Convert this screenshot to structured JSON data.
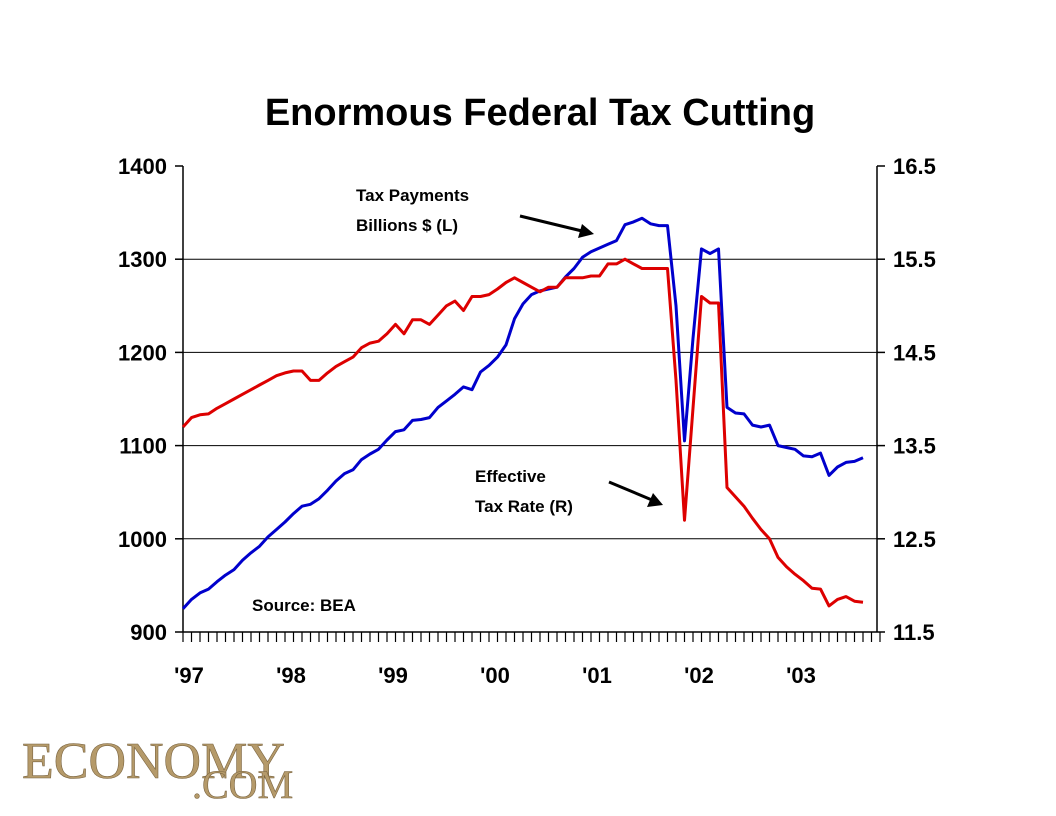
{
  "chart_data": {
    "type": "line",
    "title": "Enormous Federal Tax Cutting",
    "x_tick_labels": [
      "'97",
      "'98",
      "'99",
      "'00",
      "'01",
      "'02",
      "'03"
    ],
    "x": [
      "1997-01",
      "1997-02",
      "1997-03",
      "1997-04",
      "1997-05",
      "1997-06",
      "1997-07",
      "1997-08",
      "1997-09",
      "1997-10",
      "1997-11",
      "1997-12",
      "1998-01",
      "1998-02",
      "1998-03",
      "1998-04",
      "1998-05",
      "1998-06",
      "1998-07",
      "1998-08",
      "1998-09",
      "1998-10",
      "1998-11",
      "1998-12",
      "1999-01",
      "1999-02",
      "1999-03",
      "1999-04",
      "1999-05",
      "1999-06",
      "1999-07",
      "1999-08",
      "1999-09",
      "1999-10",
      "1999-11",
      "1999-12",
      "2000-01",
      "2000-02",
      "2000-03",
      "2000-04",
      "2000-05",
      "2000-06",
      "2000-07",
      "2000-08",
      "2000-09",
      "2000-10",
      "2000-11",
      "2000-12",
      "2001-01",
      "2001-02",
      "2001-03",
      "2001-04",
      "2001-05",
      "2001-06",
      "2001-07",
      "2001-08",
      "2001-09",
      "2001-10",
      "2001-11",
      "2001-12",
      "2002-01",
      "2002-02",
      "2002-03",
      "2002-04",
      "2002-05",
      "2002-06",
      "2002-07",
      "2002-08",
      "2002-09",
      "2002-10",
      "2002-11",
      "2002-12",
      "2003-01",
      "2003-02",
      "2003-03",
      "2003-04",
      "2003-05",
      "2003-06",
      "2003-07",
      "2003-08",
      "2003-09"
    ],
    "y_left": {
      "min": 900,
      "max": 1400,
      "ticks": [
        "900",
        "1000",
        "1100",
        "1200",
        "1300",
        "1400"
      ]
    },
    "y_right": {
      "min": 11.5,
      "max": 16.5,
      "ticks": [
        "11.5",
        "12.5",
        "13.5",
        "14.5",
        "15.5",
        "16.5"
      ]
    },
    "grid": true,
    "series": [
      {
        "name": "Tax Payments Billions $ (L)",
        "axis": "left",
        "color": "#0000cc",
        "values": [
          925,
          935,
          942,
          946,
          954,
          961,
          967,
          977,
          985,
          992,
          1002,
          1010,
          1018,
          1027,
          1035,
          1037,
          1043,
          1052,
          1062,
          1070,
          1074,
          1085,
          1091,
          1096,
          1106,
          1115,
          1117,
          1127,
          1128,
          1130,
          1141,
          1148,
          1155,
          1163,
          1160,
          1179,
          1186,
          1195,
          1208,
          1236,
          1252,
          1262,
          1266,
          1268,
          1270,
          1281,
          1290,
          1302,
          1308,
          1312,
          1316,
          1320,
          1337,
          1340,
          1344,
          1338,
          1336,
          1336,
          1250,
          1105,
          1215,
          1311,
          1306,
          1311,
          1141,
          1135,
          1134,
          1122,
          1120,
          1122,
          1100,
          1098,
          1096,
          1089,
          1088,
          1092,
          1068,
          1077,
          1082,
          1083,
          1087
        ]
      },
      {
        "name": "Effective Tax Rate (R)",
        "axis": "right",
        "color": "#dd0000",
        "values": [
          13.7,
          13.8,
          13.83,
          13.84,
          13.9,
          13.95,
          14.0,
          14.05,
          14.1,
          14.15,
          14.2,
          14.25,
          14.28,
          14.3,
          14.3,
          14.2,
          14.2,
          14.28,
          14.35,
          14.4,
          14.45,
          14.55,
          14.6,
          14.62,
          14.7,
          14.8,
          14.7,
          14.85,
          14.85,
          14.8,
          14.9,
          15.0,
          15.05,
          14.95,
          15.1,
          15.1,
          15.12,
          15.18,
          15.25,
          15.3,
          15.25,
          15.2,
          15.15,
          15.2,
          15.2,
          15.3,
          15.3,
          15.3,
          15.32,
          15.32,
          15.45,
          15.45,
          15.5,
          15.45,
          15.4,
          15.4,
          15.4,
          15.4,
          14.2,
          12.7,
          13.9,
          15.1,
          15.03,
          15.03,
          13.05,
          12.95,
          12.85,
          12.72,
          12.6,
          12.5,
          12.3,
          12.2,
          12.12,
          12.05,
          11.97,
          11.96,
          11.78,
          11.85,
          11.88,
          11.83,
          11.82
        ]
      }
    ],
    "annotations": [
      {
        "lines": [
          "Tax Payments",
          "Billions $ (L)"
        ]
      },
      {
        "lines": [
          "Effective",
          "Tax Rate (R)"
        ]
      }
    ],
    "source": "Source: BEA"
  },
  "logo": {
    "main": "ECONOMY",
    "suffix": ".COM"
  }
}
